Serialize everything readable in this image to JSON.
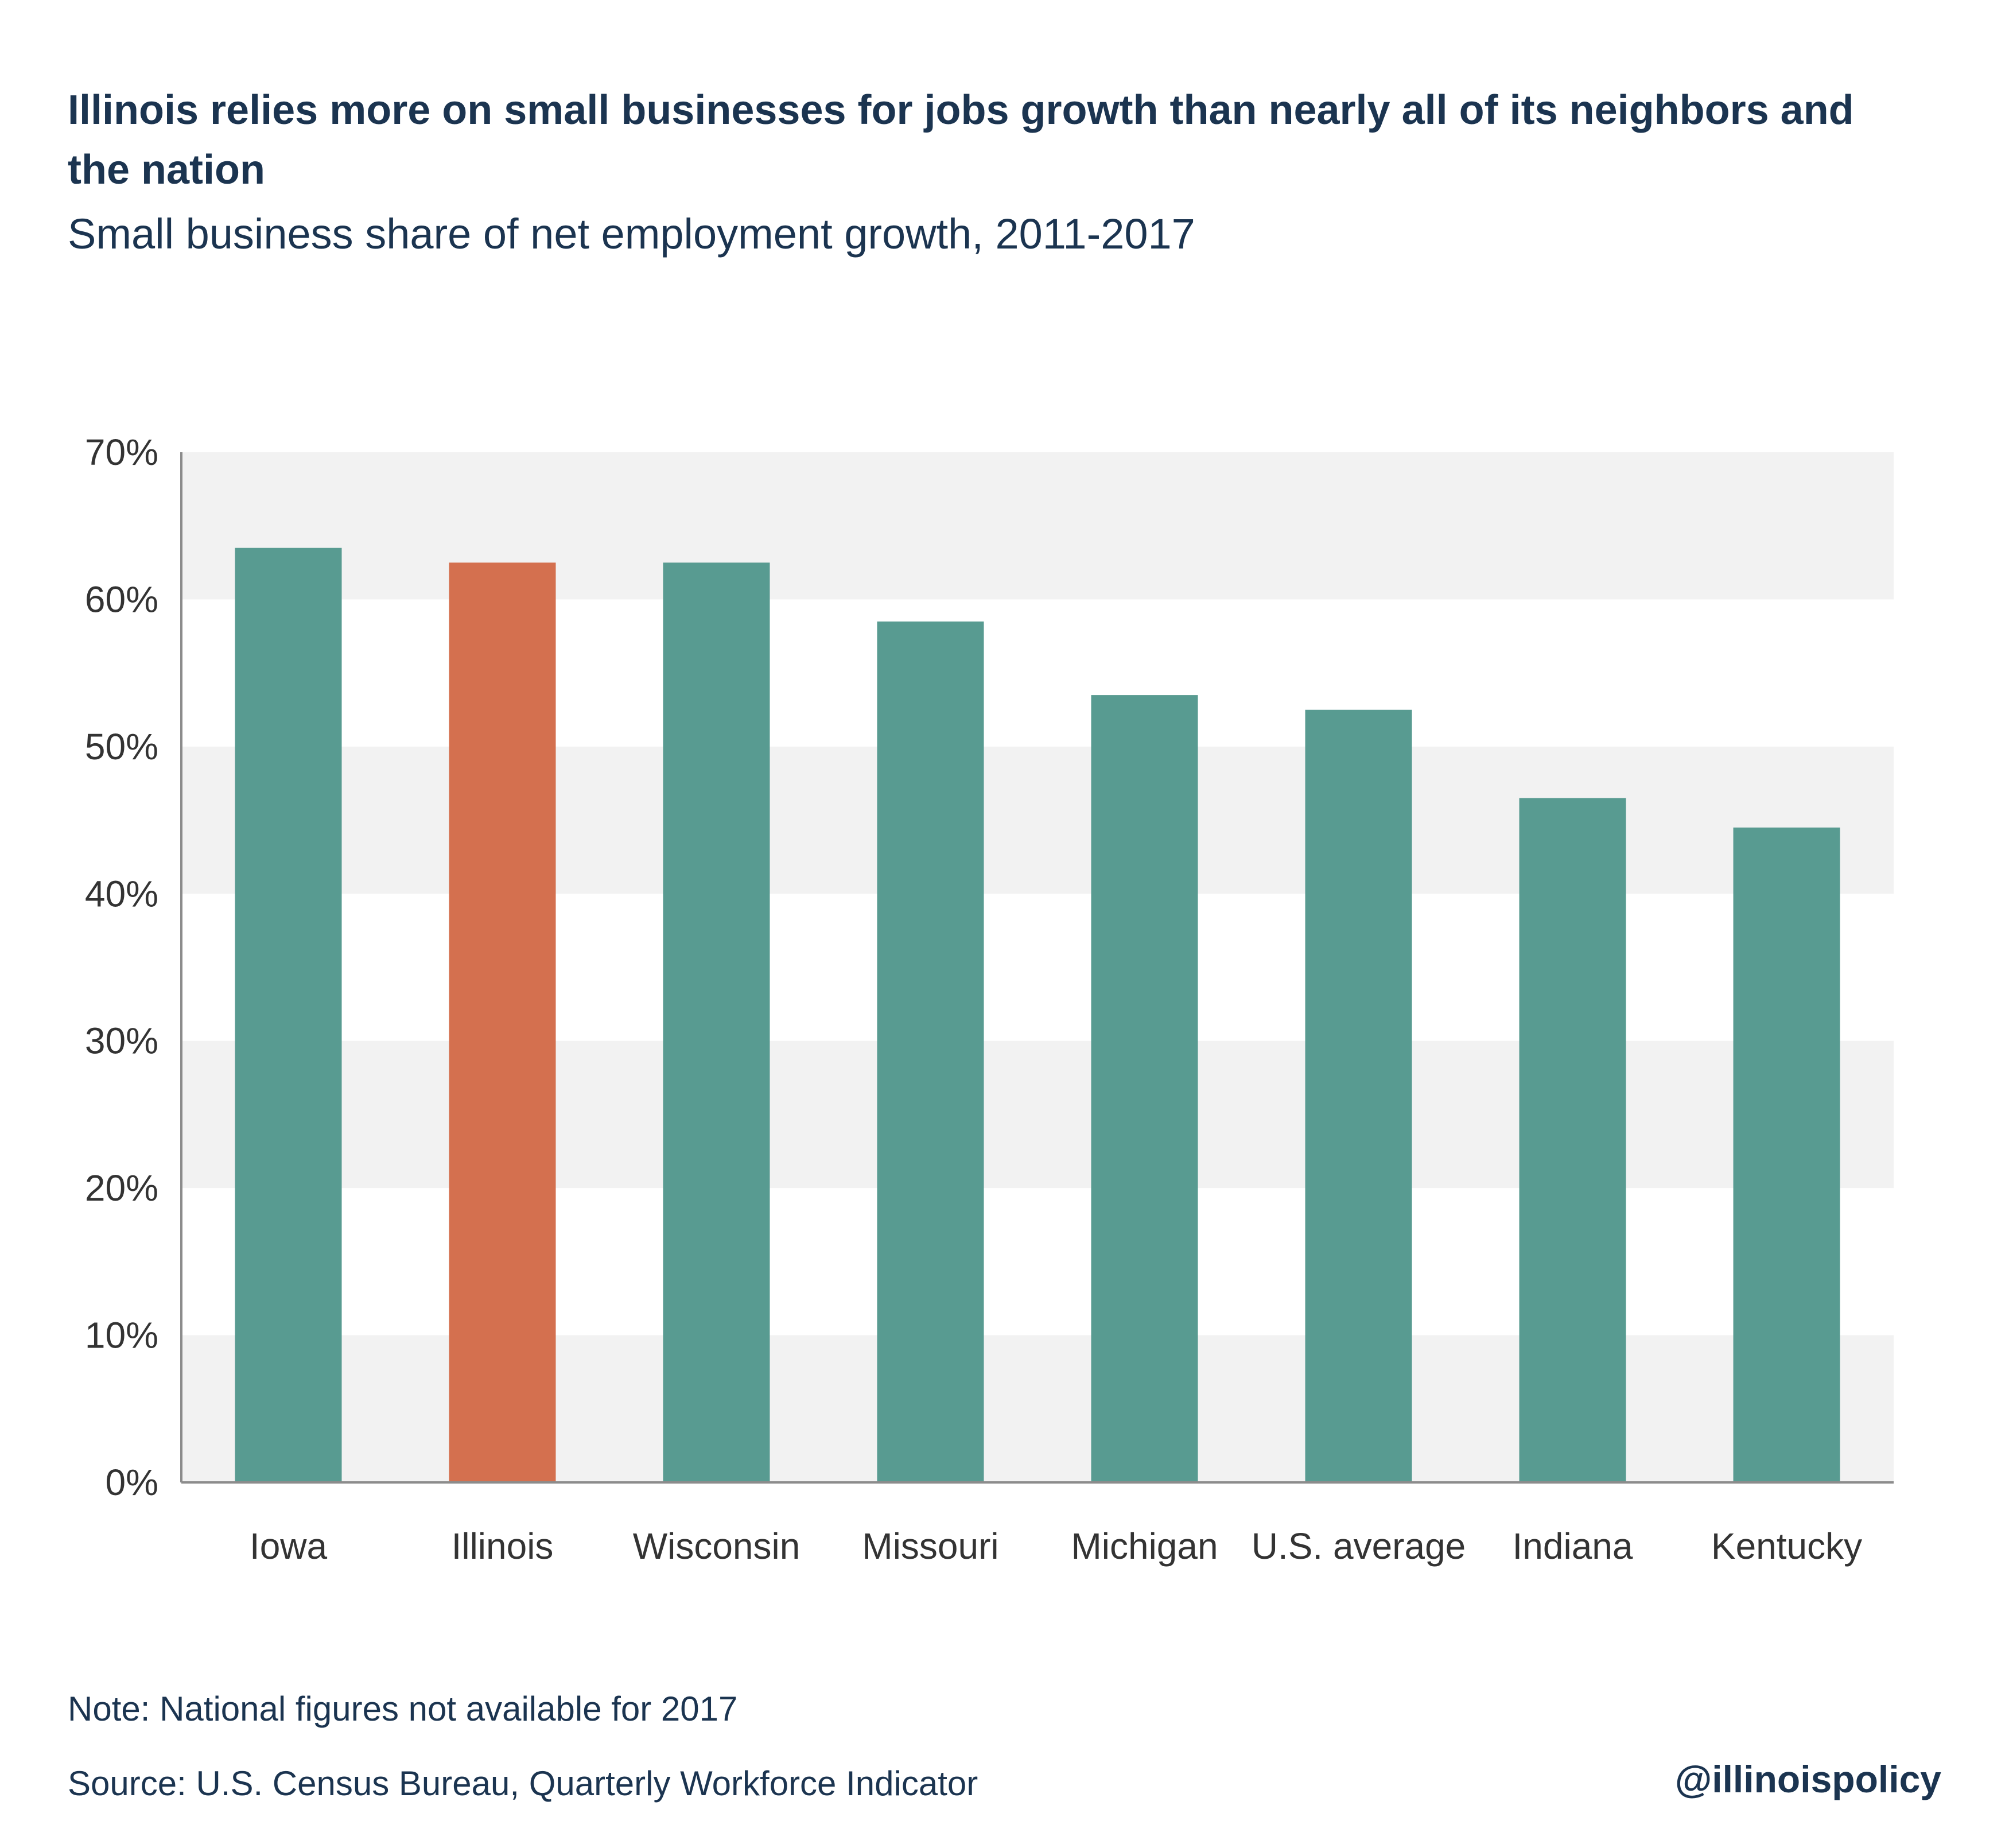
{
  "header": {
    "title": "Illinois relies more on small businesses for jobs growth than nearly all of its neighbors and the nation",
    "subtitle": "Small business share of net employment growth, 2011-2017"
  },
  "footer": {
    "note": "Note: National figures not available for 2017",
    "source": "Source: U.S. Census Bureau, Quarterly Workforce Indicator",
    "brand": "@illinoispolicy"
  },
  "colors": {
    "bar_default": "#589b91",
    "bar_highlight": "#d4704f",
    "band": "#f2f2f2",
    "axis": "#8c8c8c",
    "text": "#1b3450",
    "tick_text": "#333333"
  },
  "chart_data": {
    "type": "bar",
    "title": "Illinois relies more on small businesses for jobs growth than nearly all of its neighbors and the nation",
    "subtitle": "Small business share of net employment growth, 2011-2017",
    "categories": [
      "Iowa",
      "Illinois",
      "Wisconsin",
      "Missouri",
      "Michigan",
      "U.S. average",
      "Indiana",
      "Kentucky"
    ],
    "values": [
      63.5,
      62.5,
      62.5,
      58.5,
      53.5,
      52.5,
      46.5,
      44.5
    ],
    "highlight": "Illinois",
    "ylim": [
      0,
      70
    ],
    "yticks": [
      0,
      10,
      20,
      30,
      40,
      50,
      60,
      70
    ],
    "ytick_labels": [
      "0%",
      "10%",
      "20%",
      "30%",
      "40%",
      "50%",
      "60%",
      "70%"
    ],
    "xlabel": "",
    "ylabel": "",
    "grid": "alternating horizontal bands",
    "legend": "none"
  }
}
